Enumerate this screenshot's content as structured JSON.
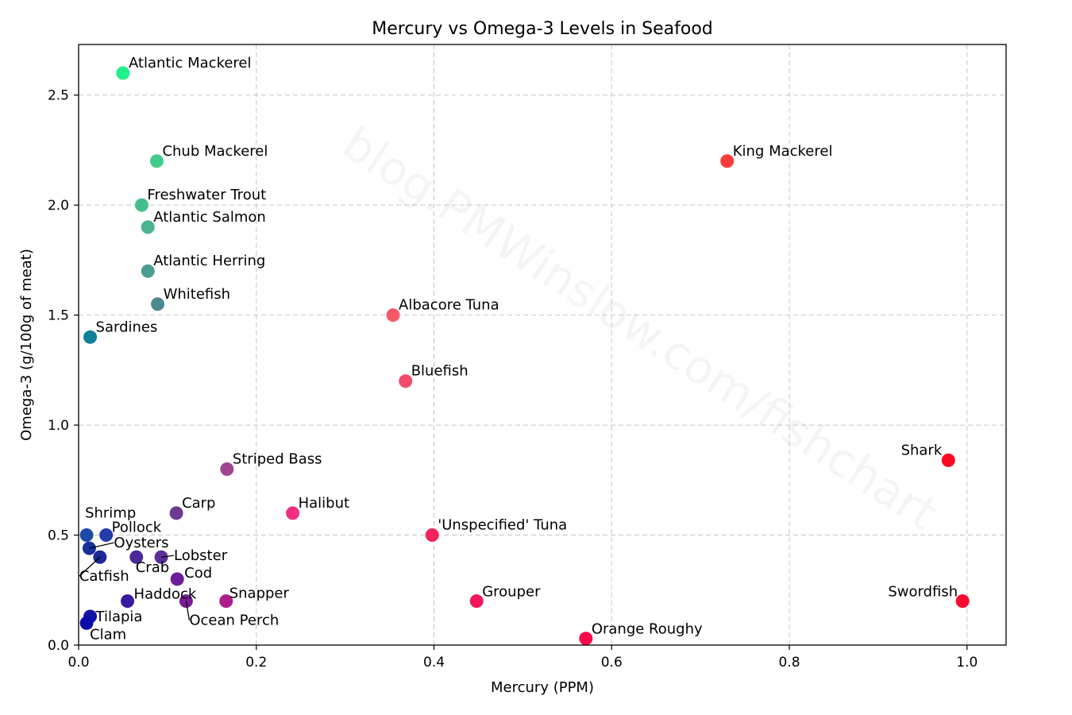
{
  "chart_data": {
    "type": "scatter",
    "title": "Mercury vs Omega-3 Levels in Seafood",
    "xlabel": "Mercury (PPM)",
    "ylabel": "Omega-3 (g/100g of meat)",
    "xlim": [
      0,
      1.044
    ],
    "ylim": [
      0,
      2.73
    ],
    "xticks": [
      0.0,
      0.2,
      0.4,
      0.6,
      0.8,
      1.0
    ],
    "xtick_labels": [
      "0.0",
      "0.2",
      "0.4",
      "0.6",
      "0.8",
      "1.0"
    ],
    "yticks": [
      0.0,
      0.5,
      1.0,
      1.5,
      2.0,
      2.5
    ],
    "ytick_labels": [
      "0.0",
      "0.5",
      "1.0",
      "1.5",
      "2.0",
      "2.5"
    ],
    "grid": true,
    "watermark": "blog.PMWinslow.com/fishchart",
    "points": [
      {
        "label": "Atlantic Mackerel",
        "x": 0.05,
        "y": 2.6,
        "color": "#22f08a"
      },
      {
        "label": "Chub Mackerel",
        "x": 0.088,
        "y": 2.2,
        "color": "#3fcc8a"
      },
      {
        "label": "Freshwater Trout",
        "x": 0.071,
        "y": 2.0,
        "color": "#44bf8c"
      },
      {
        "label": "Atlantic Salmon",
        "x": 0.078,
        "y": 1.9,
        "color": "#48b48d"
      },
      {
        "label": "Atlantic Herring",
        "x": 0.078,
        "y": 1.7,
        "color": "#4a9f92"
      },
      {
        "label": "Whitefish",
        "x": 0.089,
        "y": 1.55,
        "color": "#4e8992"
      },
      {
        "label": "Sardines",
        "x": 0.013,
        "y": 1.4,
        "color": "#0e8099"
      },
      {
        "label": "King Mackerel",
        "x": 0.73,
        "y": 2.2,
        "color": "#ff3a3a"
      },
      {
        "label": "Albacore Tuna",
        "x": 0.354,
        "y": 1.5,
        "color": "#f65a6a"
      },
      {
        "label": "Bluefish",
        "x": 0.368,
        "y": 1.2,
        "color": "#f44a6a"
      },
      {
        "label": "Striped Bass",
        "x": 0.167,
        "y": 0.8,
        "color": "#a04690"
      },
      {
        "label": "Halibut",
        "x": 0.241,
        "y": 0.6,
        "color": "#ef3080"
      },
      {
        "label": "Shark",
        "x": 0.979,
        "y": 0.84,
        "color": "#fa0a24"
      },
      {
        "label": "'Unspecified' Tuna",
        "x": 0.398,
        "y": 0.5,
        "color": "#f2245a"
      },
      {
        "label": "Carp",
        "x": 0.11,
        "y": 0.6,
        "color": "#6e3a90"
      },
      {
        "label": "Shrimp",
        "x": 0.009,
        "y": 0.5,
        "color": "#1d4aa8"
      },
      {
        "label": "Pollock",
        "x": 0.031,
        "y": 0.5,
        "color": "#233da8"
      },
      {
        "label": "Oysters",
        "x": 0.012,
        "y": 0.44,
        "color": "#16309e"
      },
      {
        "label": "Catfish",
        "x": 0.024,
        "y": 0.4,
        "color": "#1a2a98"
      },
      {
        "label": "Crab",
        "x": 0.065,
        "y": 0.4,
        "color": "#4a2a9a"
      },
      {
        "label": "Lobster",
        "x": 0.093,
        "y": 0.4,
        "color": "#5a2e9a"
      },
      {
        "label": "Cod",
        "x": 0.111,
        "y": 0.3,
        "color": "#6a1e9a"
      },
      {
        "label": "Haddock",
        "x": 0.055,
        "y": 0.2,
        "color": "#3a1aa0"
      },
      {
        "label": "Ocean Perch",
        "x": 0.121,
        "y": 0.2,
        "color": "#7a1a96"
      },
      {
        "label": "Snapper",
        "x": 0.166,
        "y": 0.2,
        "color": "#b01c8c"
      },
      {
        "label": "Grouper",
        "x": 0.448,
        "y": 0.2,
        "color": "#f4165a"
      },
      {
        "label": "Swordfish",
        "x": 0.995,
        "y": 0.2,
        "color": "#fa0a30"
      },
      {
        "label": "Orange Roughy",
        "x": 0.571,
        "y": 0.03,
        "color": "#f60a4a"
      },
      {
        "label": "Tilapia",
        "x": 0.013,
        "y": 0.13,
        "color": "#1414a4"
      },
      {
        "label": "Clam",
        "x": 0.009,
        "y": 0.1,
        "color": "#0c0ca8"
      }
    ]
  }
}
